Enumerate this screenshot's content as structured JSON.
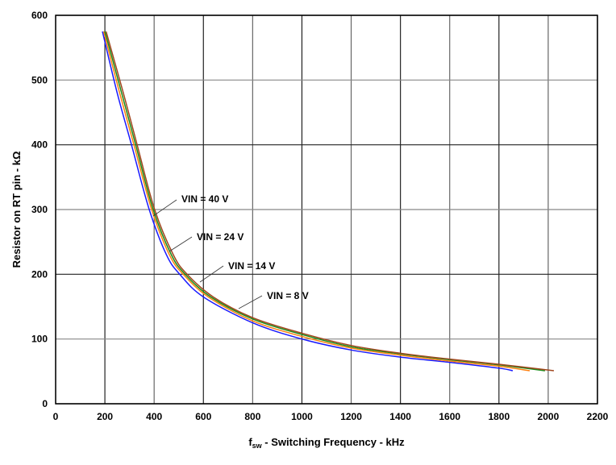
{
  "chart_data": {
    "type": "line",
    "xlabel_main": "f",
    "xlabel_sub": "sw",
    "xlabel_rest": " - Switching Frequency - kHz",
    "ylabel": "Resistor on RT pin - kΩ",
    "xlim": [
      0,
      2200
    ],
    "ylim": [
      0,
      600
    ],
    "xticks": [
      0,
      200,
      400,
      600,
      800,
      1000,
      1200,
      1400,
      1600,
      1800,
      2000,
      2200
    ],
    "yticks": [
      0,
      100,
      200,
      300,
      400,
      500,
      600
    ],
    "grid": true,
    "series": [
      {
        "name": "VIN = 8 V",
        "color": "#1a1aff",
        "points": [
          [
            190,
            575
          ],
          [
            250,
            480
          ],
          [
            308,
            400
          ],
          [
            380,
            300
          ],
          [
            450,
            230
          ],
          [
            504,
            200
          ],
          [
            600,
            165
          ],
          [
            800,
            125
          ],
          [
            1000,
            100
          ],
          [
            1200,
            83
          ],
          [
            1400,
            72
          ],
          [
            1600,
            64
          ],
          [
            1800,
            55
          ],
          [
            1856,
            51
          ]
        ]
      },
      {
        "name": "VIN = 14 V",
        "color": "#ff7f0e",
        "points": [
          [
            195,
            575
          ],
          [
            260,
            480
          ],
          [
            318,
            400
          ],
          [
            390,
            300
          ],
          [
            462,
            230
          ],
          [
            518,
            200
          ],
          [
            620,
            165
          ],
          [
            800,
            128
          ],
          [
            1000,
            104
          ],
          [
            1200,
            86
          ],
          [
            1400,
            75
          ],
          [
            1600,
            66
          ],
          [
            1800,
            58
          ],
          [
            1925,
            51
          ]
        ]
      },
      {
        "name": "VIN = 24 V",
        "color": "#1a8c1a",
        "points": [
          [
            200,
            575
          ],
          [
            268,
            480
          ],
          [
            325,
            400
          ],
          [
            396,
            300
          ],
          [
            470,
            230
          ],
          [
            526,
            200
          ],
          [
            630,
            165
          ],
          [
            800,
            131
          ],
          [
            1000,
            107
          ],
          [
            1200,
            88
          ],
          [
            1400,
            77
          ],
          [
            1600,
            68
          ],
          [
            1800,
            60
          ],
          [
            1987,
            51
          ]
        ]
      },
      {
        "name": "VIN = 40 V",
        "color": "#a0461e",
        "points": [
          [
            205,
            575
          ],
          [
            275,
            480
          ],
          [
            331,
            400
          ],
          [
            402,
            300
          ],
          [
            478,
            230
          ],
          [
            534,
            200
          ],
          [
            640,
            165
          ],
          [
            800,
            133
          ],
          [
            1000,
            109
          ],
          [
            1200,
            90
          ],
          [
            1400,
            78
          ],
          [
            1600,
            69
          ],
          [
            1800,
            61
          ],
          [
            2023,
            51
          ]
        ]
      }
    ]
  }
}
